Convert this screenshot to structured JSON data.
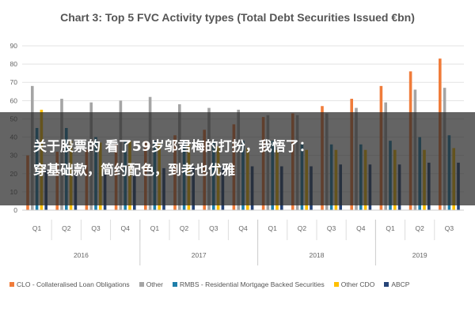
{
  "chart_data": {
    "type": "bar",
    "title": "Chart 3: Top 5 FVC Activity types (Total Debt Securities Issued €bn)",
    "xlabel": "",
    "ylabel": "",
    "ylim": [
      0,
      90
    ],
    "yticks": [
      0,
      10,
      20,
      30,
      40,
      50,
      60,
      70,
      80,
      90
    ],
    "grid": true,
    "legend_position": "bottom",
    "categories": [
      "Q1",
      "Q2",
      "Q3",
      "Q4",
      "Q1",
      "Q2",
      "Q3",
      "Q4",
      "Q1",
      "Q2",
      "Q3",
      "Q4",
      "Q1",
      "Q2",
      "Q3"
    ],
    "year_groups": [
      {
        "label": "2016",
        "count": 4
      },
      {
        "label": "2017",
        "count": 4
      },
      {
        "label": "2018",
        "count": 4
      },
      {
        "label": "2019",
        "count": 3
      }
    ],
    "series": [
      {
        "name": "CLO - Collateralised Loan Obligations",
        "color": "#f07c3a",
        "values": [
          30,
          32,
          33,
          36,
          38,
          41,
          44,
          47,
          51,
          53,
          57,
          61,
          68,
          76,
          83
        ]
      },
      {
        "name": "Other",
        "color": "#a5a5a5",
        "values": [
          68,
          61,
          59,
          60,
          62,
          58,
          56,
          55,
          52,
          52,
          53,
          56,
          59,
          66,
          67
        ]
      },
      {
        "name": "RMBS - Residential Mortgage Backed Securities",
        "color": "#1f7faa",
        "values": [
          45,
          45,
          40,
          38,
          38,
          38,
          38,
          38,
          38,
          36,
          36,
          36,
          38,
          40,
          41
        ]
      },
      {
        "name": "Other CDO",
        "color": "#ffc000",
        "values": [
          55,
          38,
          37,
          38,
          37,
          36,
          35,
          34,
          33,
          33,
          33,
          33,
          33,
          33,
          34
        ]
      },
      {
        "name": "ABCP",
        "color": "#264478",
        "values": [
          22,
          20,
          21,
          22,
          23,
          24,
          24,
          24,
          24,
          24,
          25,
          25,
          25,
          26,
          26
        ]
      }
    ]
  },
  "overlay": {
    "line1": "关于股票的 看了59岁邬君梅的打扮，我悟了：",
    "line2": "穿基础款，简约配色，到老也优雅"
  }
}
